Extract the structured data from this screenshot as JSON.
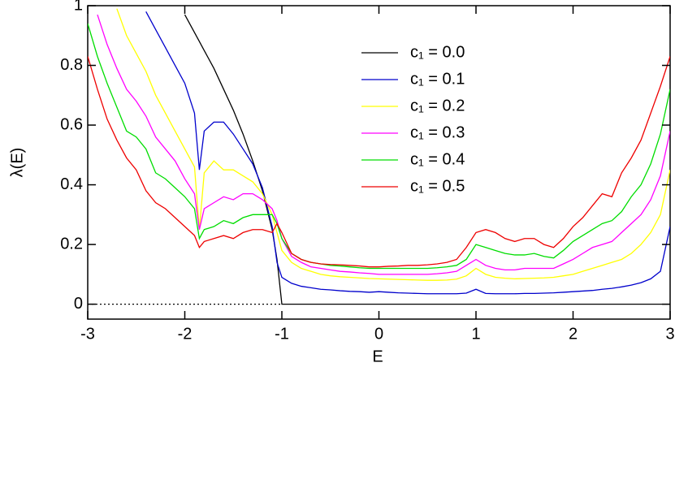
{
  "chart_data": {
    "type": "line",
    "x_label": "E",
    "y_label": "λ(E)",
    "x": [
      -3.0,
      -2.9,
      -2.8,
      -2.7,
      -2.6,
      -2.5,
      -2.4,
      -2.3,
      -2.2,
      -2.1,
      -2.0,
      -1.9,
      -1.85,
      -1.8,
      -1.7,
      -1.6,
      -1.5,
      -1.4,
      -1.3,
      -1.2,
      -1.1,
      -1.05,
      -1.0,
      -0.9,
      -0.8,
      -0.7,
      -0.6,
      -0.5,
      -0.4,
      -0.3,
      -0.2,
      -0.1,
      0,
      0.1,
      0.2,
      0.3,
      0.4,
      0.5,
      0.6,
      0.7,
      0.8,
      0.9,
      1.0,
      1.1,
      1.2,
      1.3,
      1.4,
      1.5,
      1.6,
      1.7,
      1.8,
      1.9,
      2.0,
      2.1,
      2.2,
      2.3,
      2.4,
      2.5,
      2.6,
      2.7,
      2.8,
      2.9,
      3.0
    ],
    "series": [
      {
        "name": "c₁ = 0.0",
        "color": "#000000",
        "values": [
          null,
          null,
          null,
          null,
          null,
          null,
          null,
          null,
          null,
          null,
          0.97,
          0.91,
          0.88,
          0.85,
          0.79,
          0.72,
          0.65,
          0.57,
          0.48,
          0.38,
          0.25,
          0.15,
          0,
          0,
          0,
          0,
          0,
          0,
          0,
          0,
          0,
          0,
          0,
          0,
          0,
          0,
          0,
          0,
          0,
          0,
          0,
          0,
          0,
          0,
          0,
          0,
          0,
          0,
          0,
          0,
          0,
          0,
          0,
          0,
          0,
          0,
          0,
          0,
          0,
          0,
          0,
          0,
          0
        ]
      },
      {
        "name": "c₁ = 0.1",
        "color": "#0000cc",
        "values": [
          null,
          null,
          null,
          null,
          null,
          null,
          0.98,
          0.92,
          0.86,
          0.8,
          0.74,
          0.64,
          0.45,
          0.58,
          0.61,
          0.61,
          0.57,
          0.52,
          0.47,
          0.39,
          0.26,
          0.14,
          0.09,
          0.07,
          0.06,
          0.055,
          0.05,
          0.048,
          0.045,
          0.043,
          0.042,
          0.04,
          0.042,
          0.04,
          0.038,
          0.037,
          0.036,
          0.035,
          0.035,
          0.035,
          0.035,
          0.037,
          0.05,
          0.036,
          0.035,
          0.035,
          0.035,
          0.036,
          0.036,
          0.037,
          0.038,
          0.04,
          0.042,
          0.044,
          0.046,
          0.05,
          0.053,
          0.058,
          0.064,
          0.072,
          0.085,
          0.11,
          0.26
        ]
      },
      {
        "name": "c₁ = 0.2",
        "color": "#ffff00",
        "values": [
          null,
          null,
          null,
          0.99,
          0.9,
          0.84,
          0.78,
          0.7,
          0.64,
          0.58,
          0.52,
          0.46,
          0.25,
          0.44,
          0.48,
          0.45,
          0.45,
          0.43,
          0.41,
          0.37,
          0.3,
          0.24,
          0.18,
          0.14,
          0.12,
          0.11,
          0.1,
          0.095,
          0.092,
          0.09,
          0.088,
          0.086,
          0.085,
          0.084,
          0.083,
          0.082,
          0.081,
          0.08,
          0.08,
          0.081,
          0.084,
          0.095,
          0.12,
          0.1,
          0.09,
          0.087,
          0.085,
          0.086,
          0.087,
          0.088,
          0.09,
          0.095,
          0.1,
          0.11,
          0.12,
          0.13,
          0.14,
          0.15,
          0.17,
          0.2,
          0.24,
          0.3,
          0.45
        ]
      },
      {
        "name": "c₁ = 0.3",
        "color": "#ff00ff",
        "values": [
          null,
          0.97,
          0.87,
          0.79,
          0.72,
          0.68,
          0.63,
          0.56,
          0.52,
          0.48,
          0.42,
          0.37,
          0.25,
          0.32,
          0.34,
          0.36,
          0.35,
          0.37,
          0.37,
          0.35,
          0.32,
          0.28,
          0.22,
          0.16,
          0.14,
          0.125,
          0.12,
          0.115,
          0.11,
          0.108,
          0.105,
          0.103,
          0.1,
          0.1,
          0.1,
          0.1,
          0.1,
          0.1,
          0.102,
          0.105,
          0.11,
          0.13,
          0.15,
          0.13,
          0.12,
          0.115,
          0.115,
          0.12,
          0.12,
          0.12,
          0.12,
          0.135,
          0.15,
          0.17,
          0.19,
          0.2,
          0.21,
          0.24,
          0.27,
          0.3,
          0.35,
          0.43,
          0.58
        ]
      },
      {
        "name": "c₁ = 0.4",
        "color": "#00dd00",
        "values": [
          0.94,
          0.83,
          0.74,
          0.66,
          0.58,
          0.56,
          0.52,
          0.44,
          0.42,
          0.39,
          0.36,
          0.32,
          0.22,
          0.25,
          0.26,
          0.28,
          0.27,
          0.29,
          0.3,
          0.3,
          0.3,
          0.27,
          0.22,
          0.17,
          0.15,
          0.14,
          0.135,
          0.13,
          0.128,
          0.125,
          0.122,
          0.12,
          0.12,
          0.12,
          0.12,
          0.12,
          0.12,
          0.12,
          0.122,
          0.125,
          0.13,
          0.15,
          0.2,
          0.19,
          0.18,
          0.17,
          0.165,
          0.165,
          0.17,
          0.16,
          0.155,
          0.18,
          0.21,
          0.23,
          0.25,
          0.27,
          0.28,
          0.31,
          0.36,
          0.4,
          0.47,
          0.57,
          0.72
        ]
      },
      {
        "name": "c₁ = 0.5",
        "color": "#ee0000",
        "values": [
          0.83,
          0.72,
          0.62,
          0.55,
          0.49,
          0.45,
          0.38,
          0.34,
          0.32,
          0.29,
          0.26,
          0.23,
          0.19,
          0.21,
          0.22,
          0.23,
          0.22,
          0.24,
          0.25,
          0.25,
          0.24,
          0.27,
          0.24,
          0.17,
          0.15,
          0.14,
          0.135,
          0.133,
          0.132,
          0.13,
          0.128,
          0.125,
          0.125,
          0.127,
          0.128,
          0.13,
          0.13,
          0.132,
          0.135,
          0.14,
          0.15,
          0.19,
          0.24,
          0.25,
          0.24,
          0.22,
          0.21,
          0.22,
          0.22,
          0.2,
          0.19,
          0.22,
          0.26,
          0.29,
          0.33,
          0.37,
          0.36,
          0.44,
          0.49,
          0.55,
          0.64,
          0.73,
          0.83
        ]
      }
    ],
    "reference_line": {
      "x": [
        -3,
        -1
      ],
      "values": [
        0,
        0
      ],
      "color": "#000000",
      "style": "dotted"
    },
    "xlim": [
      -3,
      3
    ],
    "ylim": [
      -0.05,
      1
    ],
    "xticks": [
      -3,
      -2,
      -1,
      0,
      1,
      2,
      3
    ],
    "yticks": [
      0,
      0.2,
      0.4,
      0.6,
      0.8,
      1
    ],
    "grid": false,
    "legend": "upper right"
  }
}
